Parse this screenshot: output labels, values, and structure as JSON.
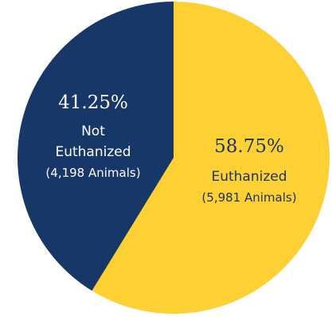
{
  "chart_data": {
    "type": "pie",
    "start_angle_deg": 0,
    "direction": "clockwise",
    "slices": [
      {
        "percent_label": "58.75%",
        "label": "Euthanized",
        "sublabel": "(5,981 Animals)",
        "value": 5981,
        "percent": 58.75,
        "color": "#fdd034",
        "text_color": "#1b3566"
      },
      {
        "percent_label": "41.25%",
        "label_lines": [
          "Not",
          "Euthanized"
        ],
        "sublabel": "(4,198 Animals)",
        "value": 4198,
        "percent": 41.25,
        "color": "#183769",
        "text_color": "#ffffff"
      }
    ]
  }
}
